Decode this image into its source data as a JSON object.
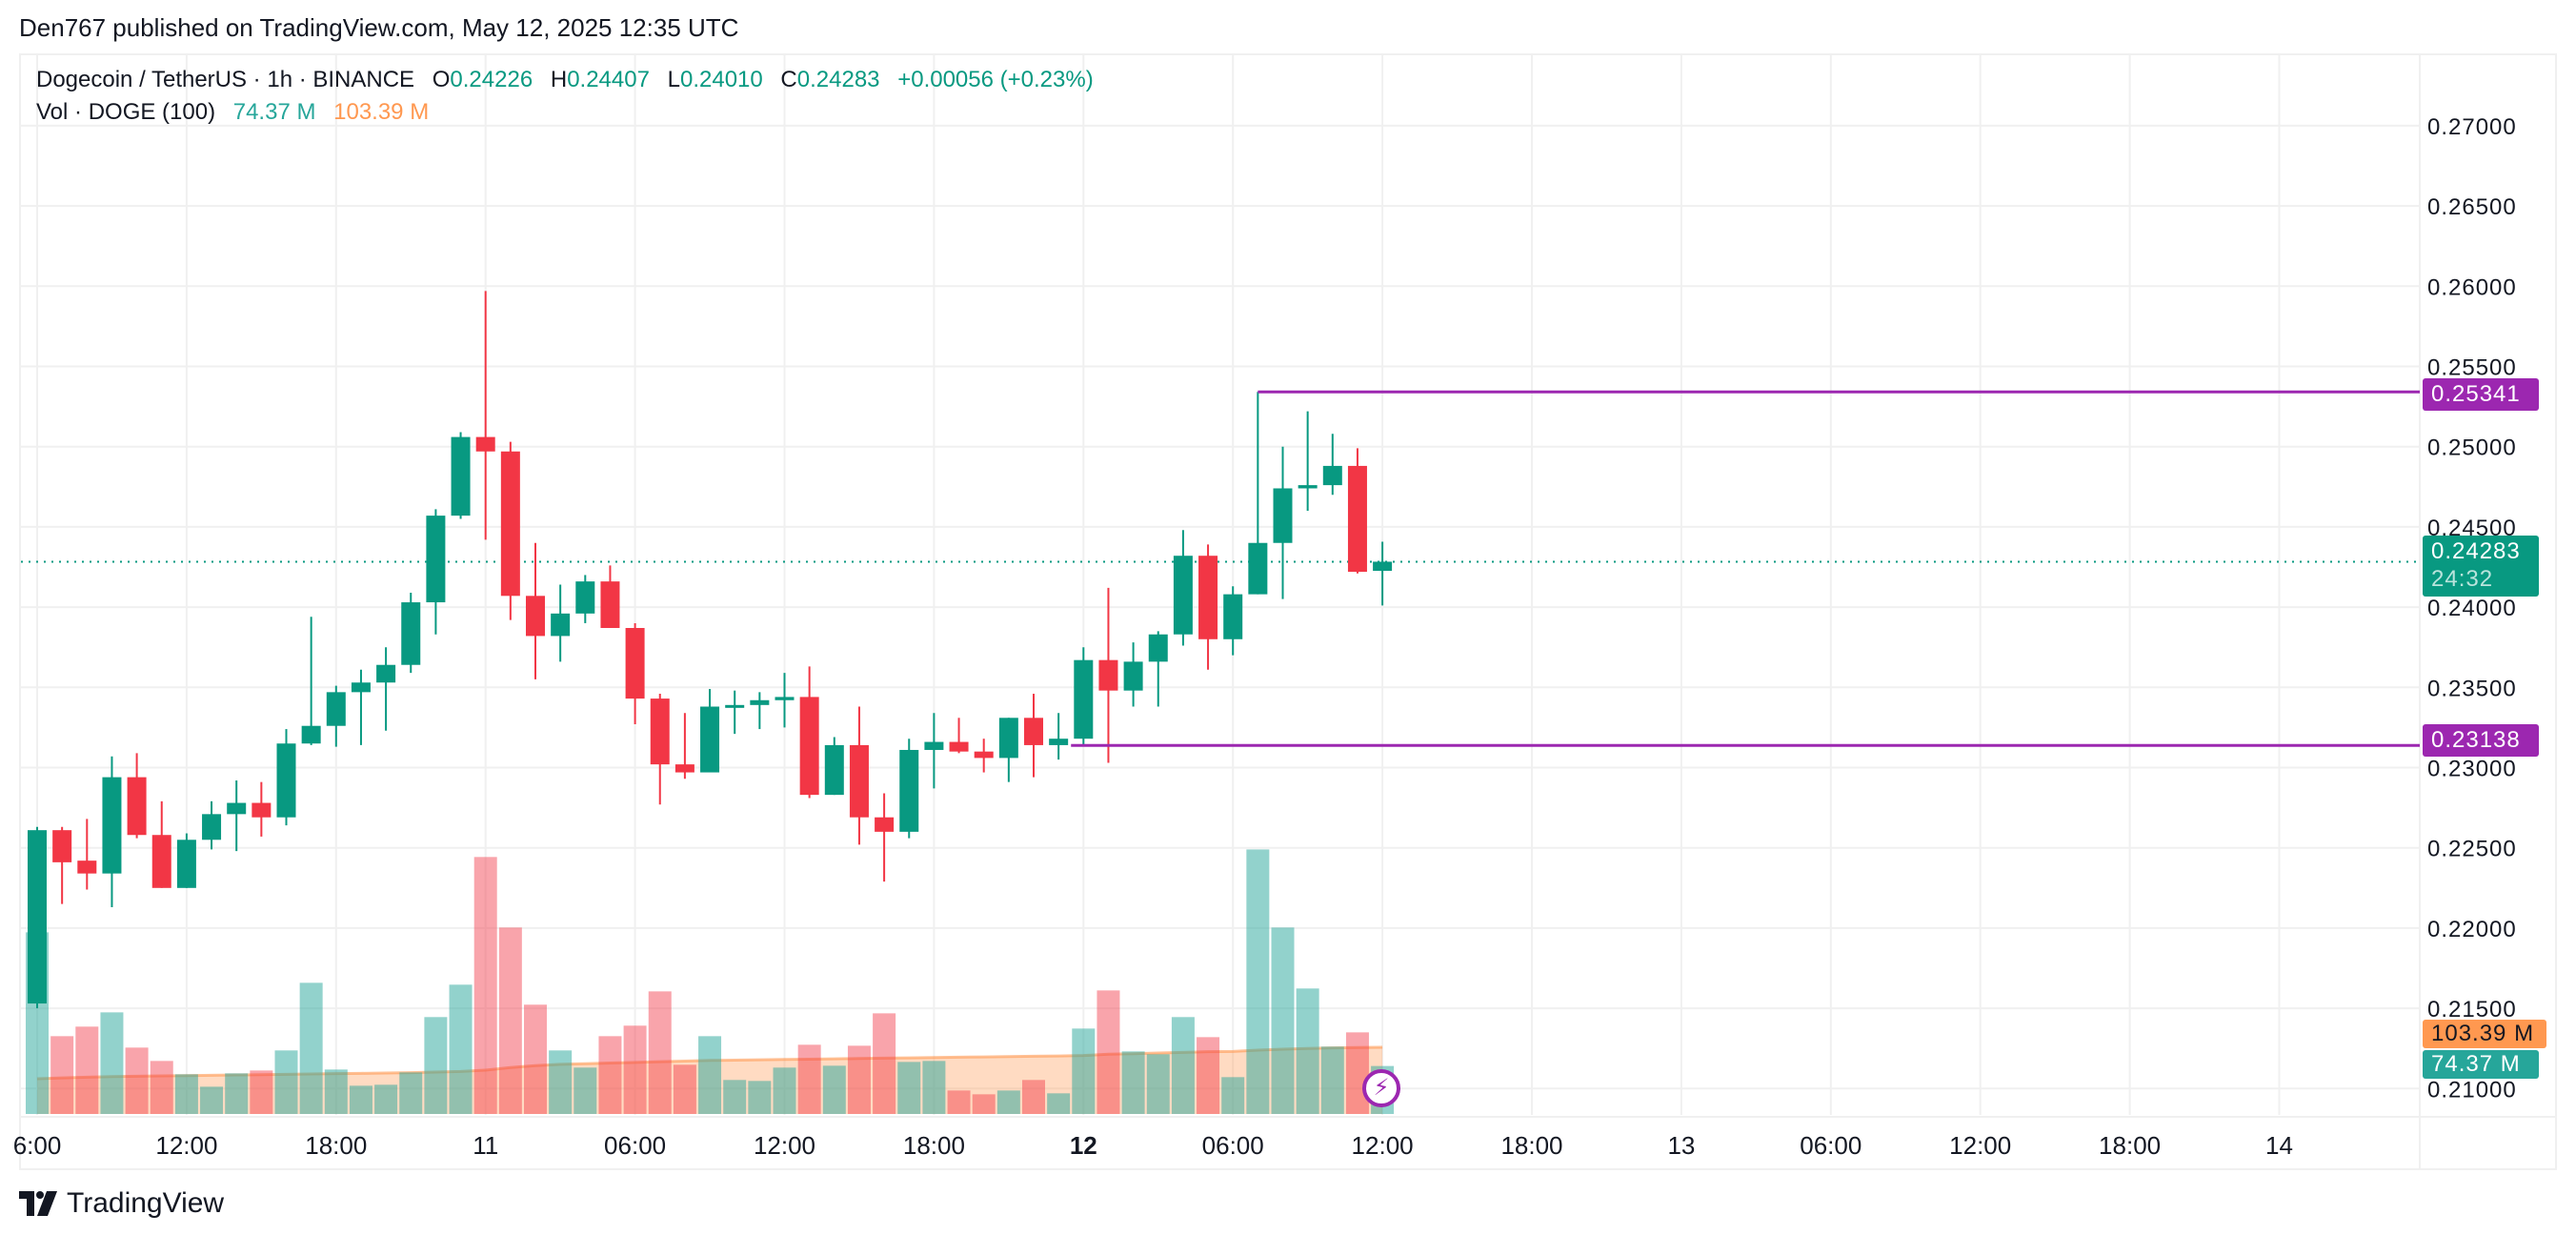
{
  "publish_line": "Den767 published on TradingView.com, May 12, 2025 12:35 UTC",
  "legend": {
    "symbol": "Dogecoin / TetherUS · 1h · BINANCE",
    "o_label": "O",
    "o": "0.24226",
    "h_label": "H",
    "h": "0.24407",
    "l_label": "L",
    "l": "0.24010",
    "c_label": "C",
    "c": "0.24283",
    "change": "+0.00056 (+0.23%)",
    "vol_label": "Vol · DOGE (100)",
    "vol_value": "74.37 M",
    "vol_ma": "103.39 M"
  },
  "price_tags": {
    "resistance": "0.25341",
    "support": "0.23138",
    "current": "0.24283",
    "countdown": "24:32",
    "vol_ma": "103.39 M",
    "vol": "74.37 M"
  },
  "logo_text": "TradingView",
  "icons": {
    "alert": "lightning-bolt-icon",
    "logo": "tradingview-logo-icon"
  },
  "colors": {
    "up": "#089981",
    "down": "#f23645",
    "vol_up": "#26a69a",
    "vol_down": "#f23645",
    "vol_ma": "#ff9850",
    "levels": "#9c27b0"
  },
  "chart_data": {
    "type": "candlestick",
    "interval": "1h",
    "y_ticks": [
      "0.27000",
      "0.26500",
      "0.26000",
      "0.25500",
      "0.25000",
      "0.24500",
      "0.24000",
      "0.23500",
      "0.23000",
      "0.22500",
      "0.22000",
      "0.21500",
      "0.21000"
    ],
    "ylim": [
      0.2085,
      0.2745
    ],
    "x_ticks": [
      {
        "label": "6:00",
        "bar": 0
      },
      {
        "label": "12:00",
        "bar": 6
      },
      {
        "label": "18:00",
        "bar": 12
      },
      {
        "label": "11",
        "bar": 18,
        "bold": false
      },
      {
        "label": "06:00",
        "bar": 24
      },
      {
        "label": "12:00",
        "bar": 30
      },
      {
        "label": "18:00",
        "bar": 36
      },
      {
        "label": "12",
        "bar": 42,
        "bold": true
      },
      {
        "label": "06:00",
        "bar": 48
      },
      {
        "label": "12:00",
        "bar": 54
      },
      {
        "label": "18:00",
        "bar": 60
      },
      {
        "label": "13",
        "bar": 66
      },
      {
        "label": "06:00",
        "bar": 72
      },
      {
        "label": "12:00",
        "bar": 78
      },
      {
        "label": "18:00",
        "bar": 84
      },
      {
        "label": "14",
        "bar": 90
      }
    ],
    "ohlc": [
      [
        0.2153,
        0.2263,
        0.215,
        0.2261
      ],
      [
        0.2261,
        0.2263,
        0.2215,
        0.2241
      ],
      [
        0.2242,
        0.2268,
        0.2224,
        0.2234
      ],
      [
        0.2234,
        0.2307,
        0.2213,
        0.2294
      ],
      [
        0.2294,
        0.2309,
        0.2256,
        0.2258
      ],
      [
        0.2258,
        0.2279,
        0.2225,
        0.2225
      ],
      [
        0.2225,
        0.2259,
        0.2225,
        0.2255
      ],
      [
        0.2255,
        0.2279,
        0.2249,
        0.2271
      ],
      [
        0.2271,
        0.2292,
        0.2248,
        0.2278
      ],
      [
        0.2278,
        0.2291,
        0.2257,
        0.2269
      ],
      [
        0.2269,
        0.2324,
        0.2264,
        0.2315
      ],
      [
        0.2315,
        0.2394,
        0.2314,
        0.2326
      ],
      [
        0.2326,
        0.2351,
        0.2313,
        0.2347
      ],
      [
        0.2347,
        0.2361,
        0.2314,
        0.2353
      ],
      [
        0.2353,
        0.2375,
        0.2323,
        0.2364
      ],
      [
        0.2364,
        0.2409,
        0.2359,
        0.2403
      ],
      [
        0.2403,
        0.2461,
        0.2383,
        0.2457
      ],
      [
        0.2457,
        0.2509,
        0.2455,
        0.2506
      ],
      [
        0.2506,
        0.2597,
        0.2442,
        0.2497
      ],
      [
        0.2497,
        0.2503,
        0.2392,
        0.2407
      ],
      [
        0.2407,
        0.244,
        0.2355,
        0.2382
      ],
      [
        0.2382,
        0.2414,
        0.2366,
        0.2396
      ],
      [
        0.2396,
        0.242,
        0.239,
        0.2416
      ],
      [
        0.2416,
        0.2426,
        0.2387,
        0.2387
      ],
      [
        0.2387,
        0.239,
        0.2327,
        0.2343
      ],
      [
        0.2343,
        0.2346,
        0.2277,
        0.2302
      ],
      [
        0.2302,
        0.2334,
        0.2293,
        0.2297
      ],
      [
        0.2297,
        0.2349,
        0.2297,
        0.2338
      ],
      [
        0.2338,
        0.2348,
        0.2321,
        0.2339
      ],
      [
        0.2339,
        0.2347,
        0.2324,
        0.2342
      ],
      [
        0.2342,
        0.2359,
        0.2325,
        0.2344
      ],
      [
        0.2344,
        0.2363,
        0.2281,
        0.2283
      ],
      [
        0.2283,
        0.2319,
        0.2283,
        0.2314
      ],
      [
        0.2314,
        0.2338,
        0.2252,
        0.2269
      ],
      [
        0.2269,
        0.2284,
        0.2229,
        0.226
      ],
      [
        0.226,
        0.2318,
        0.2256,
        0.2311
      ],
      [
        0.2311,
        0.2334,
        0.2287,
        0.2316
      ],
      [
        0.2316,
        0.2331,
        0.2309,
        0.231
      ],
      [
        0.231,
        0.2318,
        0.2297,
        0.2306
      ],
      [
        0.2306,
        0.2331,
        0.2291,
        0.2331
      ],
      [
        0.2331,
        0.2346,
        0.2294,
        0.2314
      ],
      [
        0.2314,
        0.2334,
        0.2305,
        0.2318
      ],
      [
        0.2318,
        0.2375,
        0.2314,
        0.2367
      ],
      [
        0.2367,
        0.2412,
        0.2303,
        0.2348
      ],
      [
        0.2348,
        0.2378,
        0.2338,
        0.2366
      ],
      [
        0.2366,
        0.2385,
        0.2338,
        0.2383
      ],
      [
        0.2383,
        0.2448,
        0.2376,
        0.2432
      ],
      [
        0.2432,
        0.2439,
        0.2361,
        0.238
      ],
      [
        0.238,
        0.2413,
        0.237,
        0.2408
      ],
      [
        0.2408,
        0.25341,
        0.2408,
        0.244
      ],
      [
        0.244,
        0.25,
        0.2405,
        0.2474
      ],
      [
        0.2474,
        0.2522,
        0.246,
        0.2476
      ],
      [
        0.2476,
        0.2508,
        0.247,
        0.2488
      ],
      [
        0.2488,
        0.2499,
        0.2421,
        0.2422
      ],
      [
        0.24226,
        0.24407,
        0.2401,
        0.24283
      ]
    ],
    "volume_millions": [
      281.6,
      120.6,
      135.4,
      157.5,
      102.9,
      82.2,
      61.5,
      42.3,
      63.0,
      67.4,
      98.5,
      203.3,
      68.9,
      43.8,
      45.3,
      64.5,
      150.2,
      200.4,
      398.3,
      289,
      169.4,
      98.5,
      71.9,
      120.6,
      136.9,
      190,
      76.3,
      120.6,
      52.7,
      51.2,
      71.9,
      107.3,
      74.8,
      105.8,
      156,
      80.7,
      82.2,
      36.4,
      30.5,
      36.4,
      52.7,
      32,
      132.4,
      191.5,
      97,
      92.6,
      150.2,
      119.1,
      57.1,
      410,
      289,
      194.5,
      104.4,
      126.5,
      74.37
    ],
    "volume_ma_millions": [
      54.6,
      56,
      57,
      58,
      58.5,
      59,
      59.5,
      60,
      60.5,
      61,
      61.5,
      62,
      62.5,
      63,
      63.5,
      64,
      65,
      66,
      68,
      72,
      75,
      77,
      78,
      79,
      80,
      81,
      82,
      83,
      83.5,
      84,
      84.5,
      85,
      85.5,
      86,
      86.5,
      87,
      87.5,
      88,
      88.5,
      89,
      89.5,
      90,
      90.6,
      92.6,
      93.5,
      94.5,
      95.5,
      96.5,
      97,
      99,
      100.5,
      101.5,
      102.5,
      103,
      103.39
    ],
    "horizontal_levels": [
      {
        "price": 0.25341,
        "from_bar": 49
      },
      {
        "price": 0.23138,
        "from_bar": 41.5
      }
    ],
    "last_price": 0.24283,
    "grid": true
  }
}
